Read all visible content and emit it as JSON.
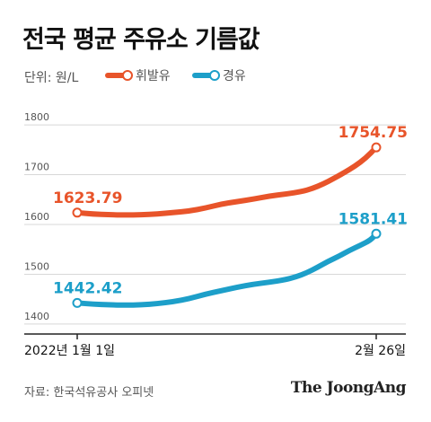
{
  "header": {
    "title": "전국 평균 주유소 기름값",
    "unit": "단위: 원/L"
  },
  "footer": {
    "source": "자료: 한국석유공사 오피넷",
    "brand": "The JoongAng"
  },
  "colors": {
    "gasoline": "#e8542a",
    "diesel": "#1d9fc9",
    "grid": "#d8d8d8",
    "axis": "#222222"
  },
  "chart_data": {
    "type": "line",
    "title": "전국 평균 주유소 기름값",
    "xlabel": "",
    "ylabel": "단위: 원/L",
    "ylim": [
      1380,
      1820
    ],
    "yticks": [
      1400,
      1500,
      1600,
      1700,
      1800
    ],
    "xticks": [
      {
        "day": 0,
        "label": "2022년 1월 1일"
      },
      {
        "day": 56,
        "label": "2월 26일"
      }
    ],
    "grid": true,
    "legend": "top",
    "series": [
      {
        "name": "휘발유",
        "start_label": "1623.79",
        "end_label": "1754.75",
        "points": [
          [
            0,
            1623.79
          ],
          [
            3,
            1621
          ],
          [
            6,
            1619.5
          ],
          [
            9,
            1619
          ],
          [
            12,
            1619.5
          ],
          [
            15,
            1621
          ],
          [
            18,
            1624
          ],
          [
            21,
            1627
          ],
          [
            24,
            1633
          ],
          [
            27,
            1641
          ],
          [
            30,
            1646
          ],
          [
            33,
            1651
          ],
          [
            36,
            1657
          ],
          [
            39,
            1661
          ],
          [
            42,
            1666
          ],
          [
            44,
            1672
          ],
          [
            46,
            1681
          ],
          [
            48,
            1692
          ],
          [
            50,
            1704
          ],
          [
            52,
            1717
          ],
          [
            54,
            1733
          ],
          [
            56,
            1754.75
          ]
        ]
      },
      {
        "name": "경유",
        "start_label": "1442.42",
        "end_label": "1581.41",
        "points": [
          [
            0,
            1442.42
          ],
          [
            3,
            1440
          ],
          [
            6,
            1438.5
          ],
          [
            9,
            1438
          ],
          [
            12,
            1438.5
          ],
          [
            15,
            1441
          ],
          [
            18,
            1445
          ],
          [
            21,
            1451
          ],
          [
            24,
            1460
          ],
          [
            27,
            1467
          ],
          [
            30,
            1474
          ],
          [
            33,
            1480
          ],
          [
            36,
            1484
          ],
          [
            39,
            1489
          ],
          [
            41,
            1495
          ],
          [
            43,
            1503
          ],
          [
            45,
            1514
          ],
          [
            47,
            1526
          ],
          [
            49,
            1536
          ],
          [
            51,
            1548
          ],
          [
            53,
            1558
          ],
          [
            55,
            1569
          ],
          [
            56,
            1581.41
          ]
        ]
      }
    ]
  }
}
